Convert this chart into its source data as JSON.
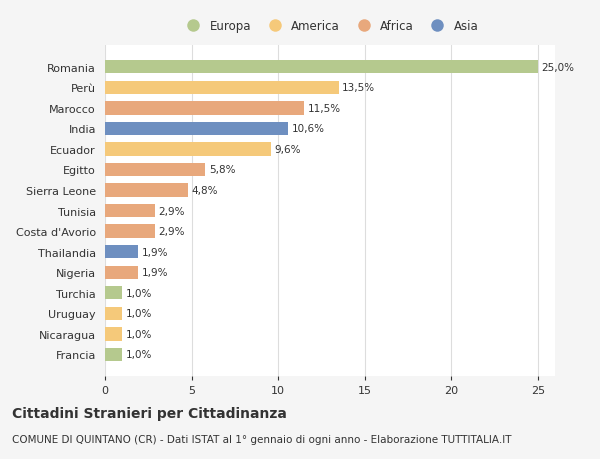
{
  "countries": [
    "Romania",
    "Perù",
    "Marocco",
    "India",
    "Ecuador",
    "Egitto",
    "Sierra Leone",
    "Tunisia",
    "Costa d'Avorio",
    "Thailandia",
    "Nigeria",
    "Turchia",
    "Uruguay",
    "Nicaragua",
    "Francia"
  ],
  "values": [
    25.0,
    13.5,
    11.5,
    10.6,
    9.6,
    5.8,
    4.8,
    2.9,
    2.9,
    1.9,
    1.9,
    1.0,
    1.0,
    1.0,
    1.0
  ],
  "labels": [
    "25,0%",
    "13,5%",
    "11,5%",
    "10,6%",
    "9,6%",
    "5,8%",
    "4,8%",
    "2,9%",
    "2,9%",
    "1,9%",
    "1,9%",
    "1,0%",
    "1,0%",
    "1,0%",
    "1,0%"
  ],
  "colors": [
    "#b5c98e",
    "#f5c97a",
    "#e8a87c",
    "#6e8fc0",
    "#f5c97a",
    "#e8a87c",
    "#e8a87c",
    "#e8a87c",
    "#e8a87c",
    "#6e8fc0",
    "#e8a87c",
    "#b5c98e",
    "#f5c97a",
    "#f5c97a",
    "#b5c98e"
  ],
  "legend_items": [
    "Europa",
    "America",
    "Africa",
    "Asia"
  ],
  "legend_colors": [
    "#b5c98e",
    "#f5c97a",
    "#e8a87c",
    "#6e8fc0"
  ],
  "title": "Cittadini Stranieri per Cittadinanza",
  "subtitle": "COMUNE DI QUINTANO (CR) - Dati ISTAT al 1° gennaio di ogni anno - Elaborazione TUTTITALIA.IT",
  "xlim": [
    0,
    26
  ],
  "xticks": [
    0,
    5,
    10,
    15,
    20,
    25
  ],
  "bg_color": "#f5f5f5",
  "bar_bg_color": "#ffffff",
  "grid_color": "#dddddd",
  "text_color": "#333333",
  "title_fontsize": 10,
  "subtitle_fontsize": 7.5,
  "label_fontsize": 7.5,
  "tick_fontsize": 8,
  "legend_fontsize": 8.5
}
